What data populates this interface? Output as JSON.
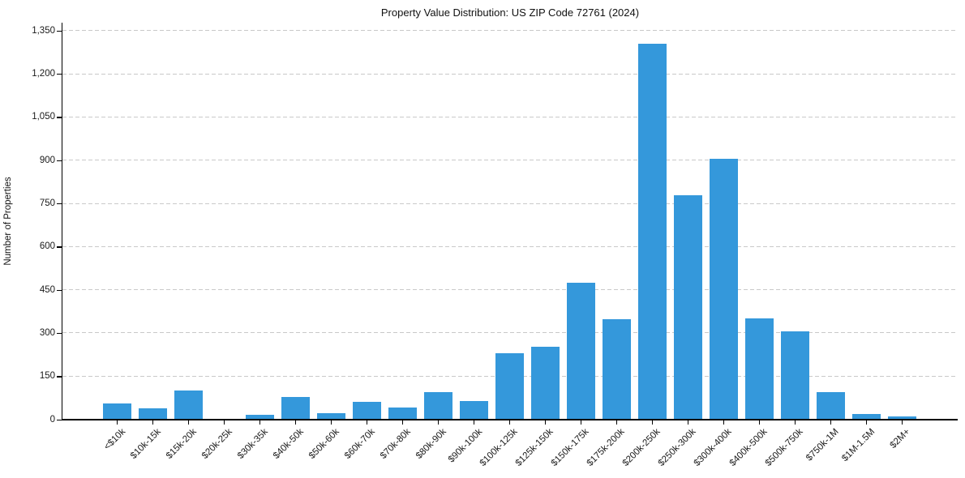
{
  "chart_data": {
    "type": "bar",
    "title": "Property Value Distribution: US ZIP Code 72761 (2024)",
    "xlabel": "",
    "ylabel": "Number of Properties",
    "categories": [
      "<$10k",
      "$10k-15k",
      "$15k-20k",
      "$20k-25k",
      "$30k-35k",
      "$40k-50k",
      "$50k-60k",
      "$60k-70k",
      "$70k-80k",
      "$80k-90k",
      "$90k-100k",
      "$100k-125k",
      "$125k-150k",
      "$150k-175k",
      "$175k-200k",
      "$200k-250k",
      "$250k-300k",
      "$300k-400k",
      "$400k-500k",
      "$500k-750k",
      "$750k-1M",
      "$1M-1.5M",
      "$2M+"
    ],
    "values": [
      55,
      40,
      100,
      4,
      18,
      80,
      22,
      62,
      42,
      95,
      64,
      230,
      254,
      476,
      348,
      1306,
      781,
      906,
      352,
      307,
      96,
      20,
      12
    ],
    "yticks": [
      0,
      150,
      300,
      450,
      600,
      750,
      900,
      1050,
      1200,
      1350
    ],
    "ytick_labels": [
      "0",
      "150",
      "300",
      "450",
      "600",
      "750",
      "900",
      "1,050",
      "1,200",
      "1,350"
    ],
    "ylim": [
      0,
      1379
    ],
    "grid": "horizontal-dashed",
    "legend": "none",
    "bar_color": "#3498db",
    "xtick_rotation_deg": 45
  }
}
